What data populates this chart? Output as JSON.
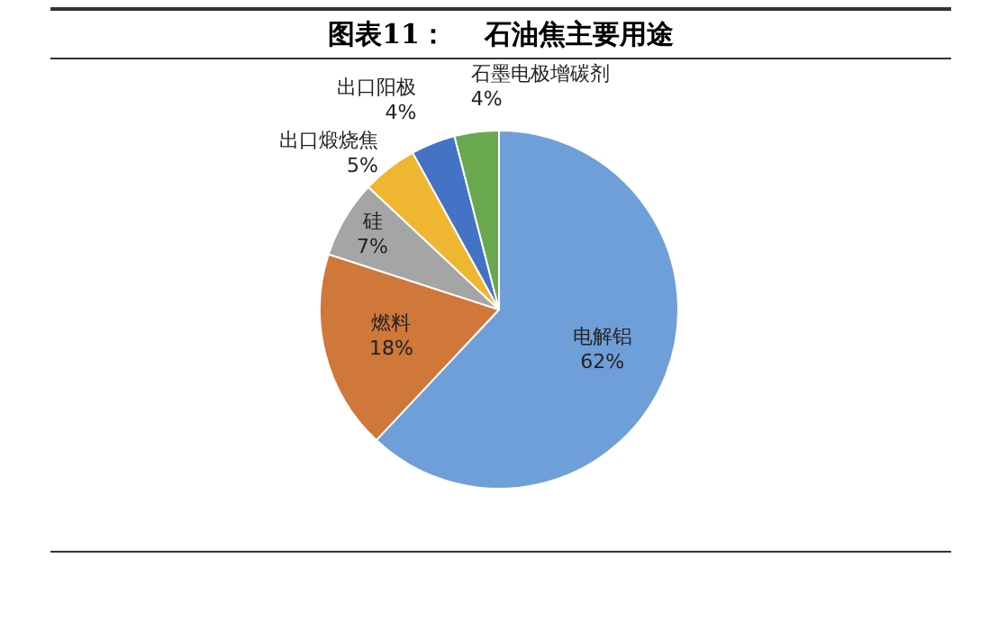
{
  "chart_data": {
    "type": "pie",
    "title": "图表11：    石油焦主要用途",
    "categories": [
      "电解铝",
      "燃料",
      "硅",
      "出口煅烧焦",
      "出口阳极",
      "石墨电极增碳剂"
    ],
    "values": [
      62,
      18,
      7,
      5,
      4,
      4
    ],
    "value_labels": [
      "62%",
      "18%",
      "7%",
      "5%",
      "4%",
      "4%"
    ],
    "colors": [
      "#6f9fd8",
      "#d0773a",
      "#a5a5a5",
      "#efb631",
      "#4472c4",
      "#6aa84f"
    ],
    "legend": false
  }
}
